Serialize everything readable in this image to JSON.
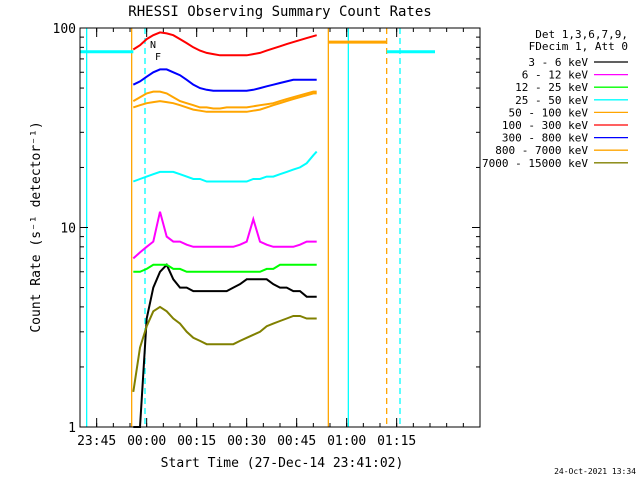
{
  "chart_data": {
    "type": "line",
    "title": "RHESSI Observing Summary Count Rates",
    "xlabel": "Start Time (27-Dec-14 23:41:02)",
    "ylabel": "Count Rate (s⁻¹ detector⁻¹)",
    "yscale": "log",
    "ylim": [
      1,
      100
    ],
    "xlim_minutes": [
      -20,
      100
    ],
    "x_tick_minutes": [
      -15,
      0,
      15,
      30,
      45,
      60,
      75
    ],
    "x_tick_labels": [
      "23:45",
      "00:00",
      "00:15",
      "00:30",
      "00:45",
      "01:00",
      "01:15"
    ],
    "y_tick_values": [
      1,
      10,
      100
    ],
    "y_tick_labels": [
      "1",
      "10",
      "100"
    ],
    "grid": false,
    "legend_position": "right",
    "legend_header": [
      "Det 1,3,6,7,9,",
      "FDecim 1, Att 0"
    ],
    "timestamp": "24-Oct-2021 13:34",
    "annotations": [
      {
        "text": "N",
        "color": "#00ffff",
        "x_min": 1
      },
      {
        "text": "F",
        "color": "#ff0000",
        "x_min": 2.5
      }
    ],
    "data_window_minutes": [
      -4.5,
      51.5
    ],
    "series": [
      {
        "name": "3 - 6 keV",
        "color": "#000000",
        "x": [
          -4,
          -2,
          0,
          2,
          4,
          6,
          8,
          10,
          12,
          14,
          16,
          18,
          20,
          22,
          24,
          26,
          28,
          30,
          32,
          34,
          36,
          38,
          40,
          42,
          44,
          46,
          48,
          50,
          51
        ],
        "y": [
          1.0,
          1.0,
          3.5,
          5.0,
          6.0,
          6.5,
          5.5,
          5.0,
          5.0,
          4.8,
          4.8,
          4.8,
          4.8,
          4.8,
          4.8,
          5.0,
          5.2,
          5.5,
          5.5,
          5.5,
          5.5,
          5.2,
          5.0,
          5.0,
          4.8,
          4.8,
          4.5,
          4.5,
          4.5
        ]
      },
      {
        "name": "6 - 12 keV",
        "color": "#ff00ff",
        "x": [
          -4,
          -2,
          0,
          2,
          4,
          6,
          8,
          10,
          12,
          14,
          16,
          18,
          20,
          22,
          24,
          26,
          28,
          30,
          32,
          34,
          36,
          38,
          40,
          42,
          44,
          46,
          48,
          50,
          51
        ],
        "y": [
          7.0,
          7.5,
          8.0,
          8.5,
          12.0,
          9.0,
          8.5,
          8.5,
          8.2,
          8.0,
          8.0,
          8.0,
          8.0,
          8.0,
          8.0,
          8.0,
          8.2,
          8.5,
          11.0,
          8.5,
          8.2,
          8.0,
          8.0,
          8.0,
          8.0,
          8.2,
          8.5,
          8.5,
          8.5
        ]
      },
      {
        "name": "12 - 25 keV",
        "color": "#00ff00",
        "x": [
          -4,
          -2,
          0,
          2,
          4,
          6,
          8,
          10,
          12,
          14,
          16,
          18,
          20,
          22,
          24,
          26,
          28,
          30,
          32,
          34,
          36,
          38,
          40,
          42,
          44,
          46,
          48,
          50,
          51
        ],
        "y": [
          6.0,
          6.0,
          6.2,
          6.5,
          6.5,
          6.5,
          6.2,
          6.2,
          6.0,
          6.0,
          6.0,
          6.0,
          6.0,
          6.0,
          6.0,
          6.0,
          6.0,
          6.0,
          6.0,
          6.0,
          6.2,
          6.2,
          6.5,
          6.5,
          6.5,
          6.5,
          6.5,
          6.5,
          6.5
        ]
      },
      {
        "name": "25 - 50 keV",
        "color": "#00ffff",
        "x": [
          -4,
          -2,
          0,
          2,
          4,
          6,
          8,
          10,
          12,
          14,
          16,
          18,
          20,
          22,
          24,
          26,
          28,
          30,
          32,
          34,
          36,
          38,
          40,
          42,
          44,
          46,
          48,
          50,
          51
        ],
        "y": [
          17.0,
          17.5,
          18.0,
          18.5,
          19.0,
          19.0,
          19.0,
          18.5,
          18.0,
          17.5,
          17.5,
          17.0,
          17.0,
          17.0,
          17.0,
          17.0,
          17.0,
          17.0,
          17.5,
          17.5,
          18.0,
          18.0,
          18.5,
          19.0,
          19.5,
          20.0,
          21.0,
          23.0,
          24.0
        ]
      },
      {
        "name": "50 - 100 keV",
        "color": "#ffa500",
        "x": [
          -4,
          -2,
          0,
          2,
          4,
          6,
          8,
          10,
          12,
          14,
          16,
          18,
          20,
          22,
          24,
          26,
          28,
          30,
          32,
          34,
          36,
          38,
          40,
          42,
          44,
          46,
          48,
          50,
          51
        ],
        "y": [
          43.0,
          45.0,
          47.0,
          48.0,
          48.0,
          47.0,
          45.0,
          43.0,
          42.0,
          41.0,
          40.0,
          40.0,
          39.5,
          39.5,
          40.0,
          40.0,
          40.0,
          40.0,
          40.5,
          41.0,
          41.5,
          42.0,
          43.0,
          44.0,
          45.0,
          46.0,
          47.0,
          48.0,
          48.0
        ]
      },
      {
        "name": "100 - 300 keV",
        "color": "#ff0000",
        "x": [
          -4,
          -2,
          0,
          2,
          4,
          6,
          8,
          10,
          12,
          14,
          16,
          18,
          20,
          22,
          24,
          26,
          28,
          30,
          32,
          34,
          36,
          38,
          40,
          42,
          44,
          46,
          48,
          50,
          51
        ],
        "y": [
          78.0,
          82.0,
          88.0,
          92.0,
          95.0,
          94.0,
          92.0,
          88.0,
          84.0,
          80.0,
          77.0,
          75.0,
          74.0,
          73.0,
          73.0,
          73.0,
          73.0,
          73.0,
          74.0,
          75.0,
          77.0,
          79.0,
          81.0,
          83.0,
          85.0,
          87.0,
          89.0,
          91.0,
          92.0
        ]
      },
      {
        "name": "300 - 800 keV",
        "color": "#0000ff",
        "x": [
          -4,
          -2,
          0,
          2,
          4,
          6,
          8,
          10,
          12,
          14,
          16,
          18,
          20,
          22,
          24,
          26,
          28,
          30,
          32,
          34,
          36,
          38,
          40,
          42,
          44,
          46,
          48,
          50,
          51
        ],
        "y": [
          52.0,
          54.0,
          57.0,
          60.0,
          62.0,
          62.0,
          60.0,
          58.0,
          55.0,
          52.0,
          50.0,
          49.0,
          48.5,
          48.5,
          48.5,
          48.5,
          48.5,
          48.5,
          49.0,
          50.0,
          51.0,
          52.0,
          53.0,
          54.0,
          55.0,
          55.0,
          55.0,
          55.0,
          55.0
        ]
      },
      {
        "name": "800 - 7000 keV",
        "color": "#ffa500",
        "x": [
          -4,
          -2,
          0,
          2,
          4,
          6,
          8,
          10,
          12,
          14,
          16,
          18,
          20,
          22,
          24,
          26,
          28,
          30,
          32,
          34,
          36,
          38,
          40,
          42,
          44,
          46,
          48,
          50,
          51
        ],
        "y": [
          40.0,
          41.0,
          42.0,
          42.5,
          43.0,
          42.5,
          42.0,
          41.0,
          40.0,
          39.0,
          38.5,
          38.0,
          38.0,
          38.0,
          38.0,
          38.0,
          38.0,
          38.0,
          38.5,
          39.0,
          40.0,
          41.0,
          42.0,
          43.0,
          44.0,
          45.0,
          46.0,
          47.0,
          47.0
        ]
      },
      {
        "name": "7000 - 15000 keV",
        "color": "#808000",
        "x": [
          -4,
          -2,
          0,
          2,
          4,
          6,
          8,
          10,
          12,
          14,
          16,
          18,
          20,
          22,
          24,
          26,
          28,
          30,
          32,
          34,
          36,
          38,
          40,
          42,
          44,
          46,
          48,
          50,
          51
        ],
        "y": [
          1.5,
          2.5,
          3.2,
          3.8,
          4.0,
          3.8,
          3.5,
          3.3,
          3.0,
          2.8,
          2.7,
          2.6,
          2.6,
          2.6,
          2.6,
          2.6,
          2.7,
          2.8,
          2.9,
          3.0,
          3.2,
          3.3,
          3.4,
          3.5,
          3.6,
          3.6,
          3.5,
          3.5,
          3.5
        ]
      }
    ],
    "segments": [
      {
        "name": "pre-data-level",
        "color": "#00ffff",
        "x": [
          -20,
          -4
        ],
        "y": 76
      },
      {
        "name": "post-data-level-orange",
        "color": "#ffa500",
        "x": [
          54.5,
          72
        ],
        "y": 85
      },
      {
        "name": "post-data-level-cyan",
        "color": "#00ffff",
        "x": [
          72,
          86.5
        ],
        "y": 76
      }
    ],
    "markers": [
      {
        "name": "night-start",
        "color": "#ffa500",
        "style": "solid",
        "x": -4.5
      },
      {
        "name": "pre-data-edge",
        "color": "#00ffff",
        "style": "solid",
        "x": -18
      },
      {
        "name": "saa-dash-1",
        "color": "#00ffff",
        "style": "dashed",
        "x": -0.5
      },
      {
        "name": "night-end",
        "color": "#ffa500",
        "style": "solid",
        "x": 54.5
      },
      {
        "name": "cyan-boundary",
        "color": "#00ffff",
        "style": "solid",
        "x": 60.5
      },
      {
        "name": "orange-dash-2",
        "color": "#ffa500",
        "style": "dashed",
        "x": 72
      },
      {
        "name": "cyan-dash-2",
        "color": "#00ffff",
        "style": "dashed",
        "x": 76
      }
    ]
  }
}
